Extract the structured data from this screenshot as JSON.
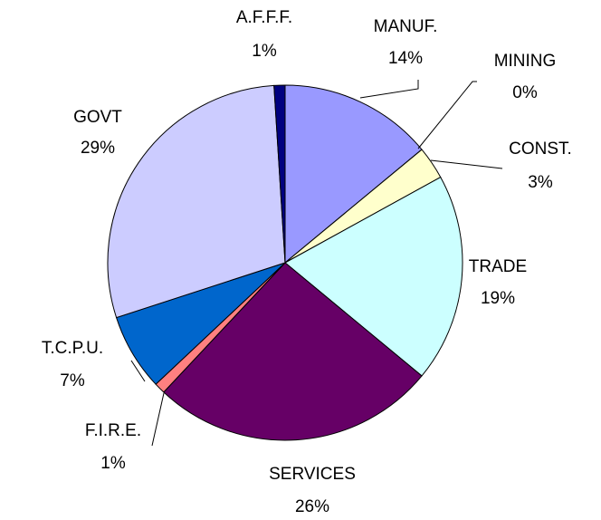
{
  "chart_data": {
    "type": "pie",
    "categories": [
      "MANUF.",
      "MINING",
      "CONST.",
      "TRADE",
      "SERVICES",
      "F.I.R.E.",
      "T.C.P.U.",
      "GOVT",
      "A.F.F.F."
    ],
    "values": [
      14,
      0,
      3,
      19,
      26,
      1,
      7,
      29,
      1
    ],
    "value_labels": [
      "14%",
      "0%",
      "3%",
      "19%",
      "26%",
      "1%",
      "7%",
      "29%",
      "1%"
    ],
    "colors": [
      "#9999ff",
      "#993366",
      "#ffffcc",
      "#ccffff",
      "#660066",
      "#ff8080",
      "#0066cc",
      "#ccccff",
      "#000080"
    ]
  }
}
